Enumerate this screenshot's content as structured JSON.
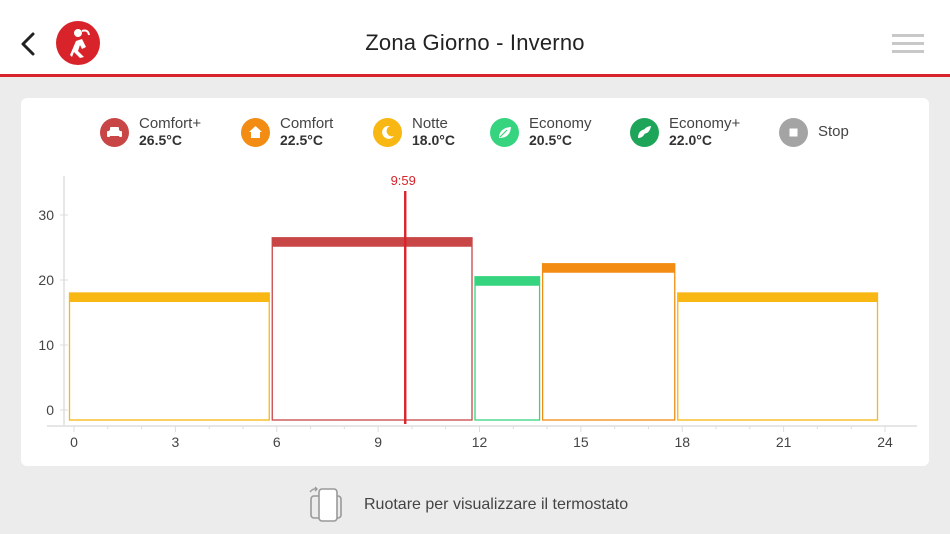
{
  "header": {
    "title": "Zona Giorno - Inverno",
    "accent_color": "#d8232a",
    "back_icon": "chevron-left-icon",
    "logo_icon": "brand-logo-icon",
    "menu_icon": "hamburger-menu-icon"
  },
  "legend": [
    {
      "name": "Comfort+",
      "temp": "26.5°C",
      "color": "#c94646",
      "icon": "armchair-icon"
    },
    {
      "name": "Comfort",
      "temp": "22.5°C",
      "color": "#f28c12",
      "icon": "home-icon"
    },
    {
      "name": "Notte",
      "temp": "18.0°C",
      "color": "#f8b712",
      "icon": "moon-icon"
    },
    {
      "name": "Economy",
      "temp": "20.5°C",
      "color": "#37d47f",
      "icon": "leaf-icon"
    },
    {
      "name": "Economy+",
      "temp": "22.0°C",
      "color": "#1fa55a",
      "icon": "double-leaf-icon"
    },
    {
      "name": "Stop",
      "temp": "",
      "color": "#a4a4a4",
      "icon": "stop-icon"
    }
  ],
  "chart_data": {
    "type": "bar",
    "xlabel": "",
    "ylabel": "",
    "xlim": [
      0,
      24
    ],
    "ylim": [
      0,
      35
    ],
    "x_ticks": [
      "0",
      "3",
      "6",
      "9",
      "12",
      "15",
      "18",
      "21",
      "24"
    ],
    "y_ticks": [
      "0",
      "10",
      "20",
      "30"
    ],
    "grid": false,
    "current_time": {
      "label": "9:59",
      "hour": 9.98
    },
    "segments": [
      {
        "start": 0,
        "end": 6,
        "value": 18.0,
        "mode": "Notte",
        "color": "#f8b712"
      },
      {
        "start": 6,
        "end": 12,
        "value": 26.5,
        "mode": "Comfort+",
        "color": "#c94646"
      },
      {
        "start": 12,
        "end": 14,
        "value": 20.5,
        "mode": "Economy",
        "color": "#37d47f"
      },
      {
        "start": 14,
        "end": 18,
        "value": 22.5,
        "mode": "Comfort",
        "color": "#f28c12"
      },
      {
        "start": 18,
        "end": 24,
        "value": 18.0,
        "mode": "Notte",
        "color": "#f8b712"
      }
    ]
  },
  "footer": {
    "rotate_text": "Ruotare per visualizzare il termostato",
    "rotate_icon": "rotate-device-icon"
  }
}
